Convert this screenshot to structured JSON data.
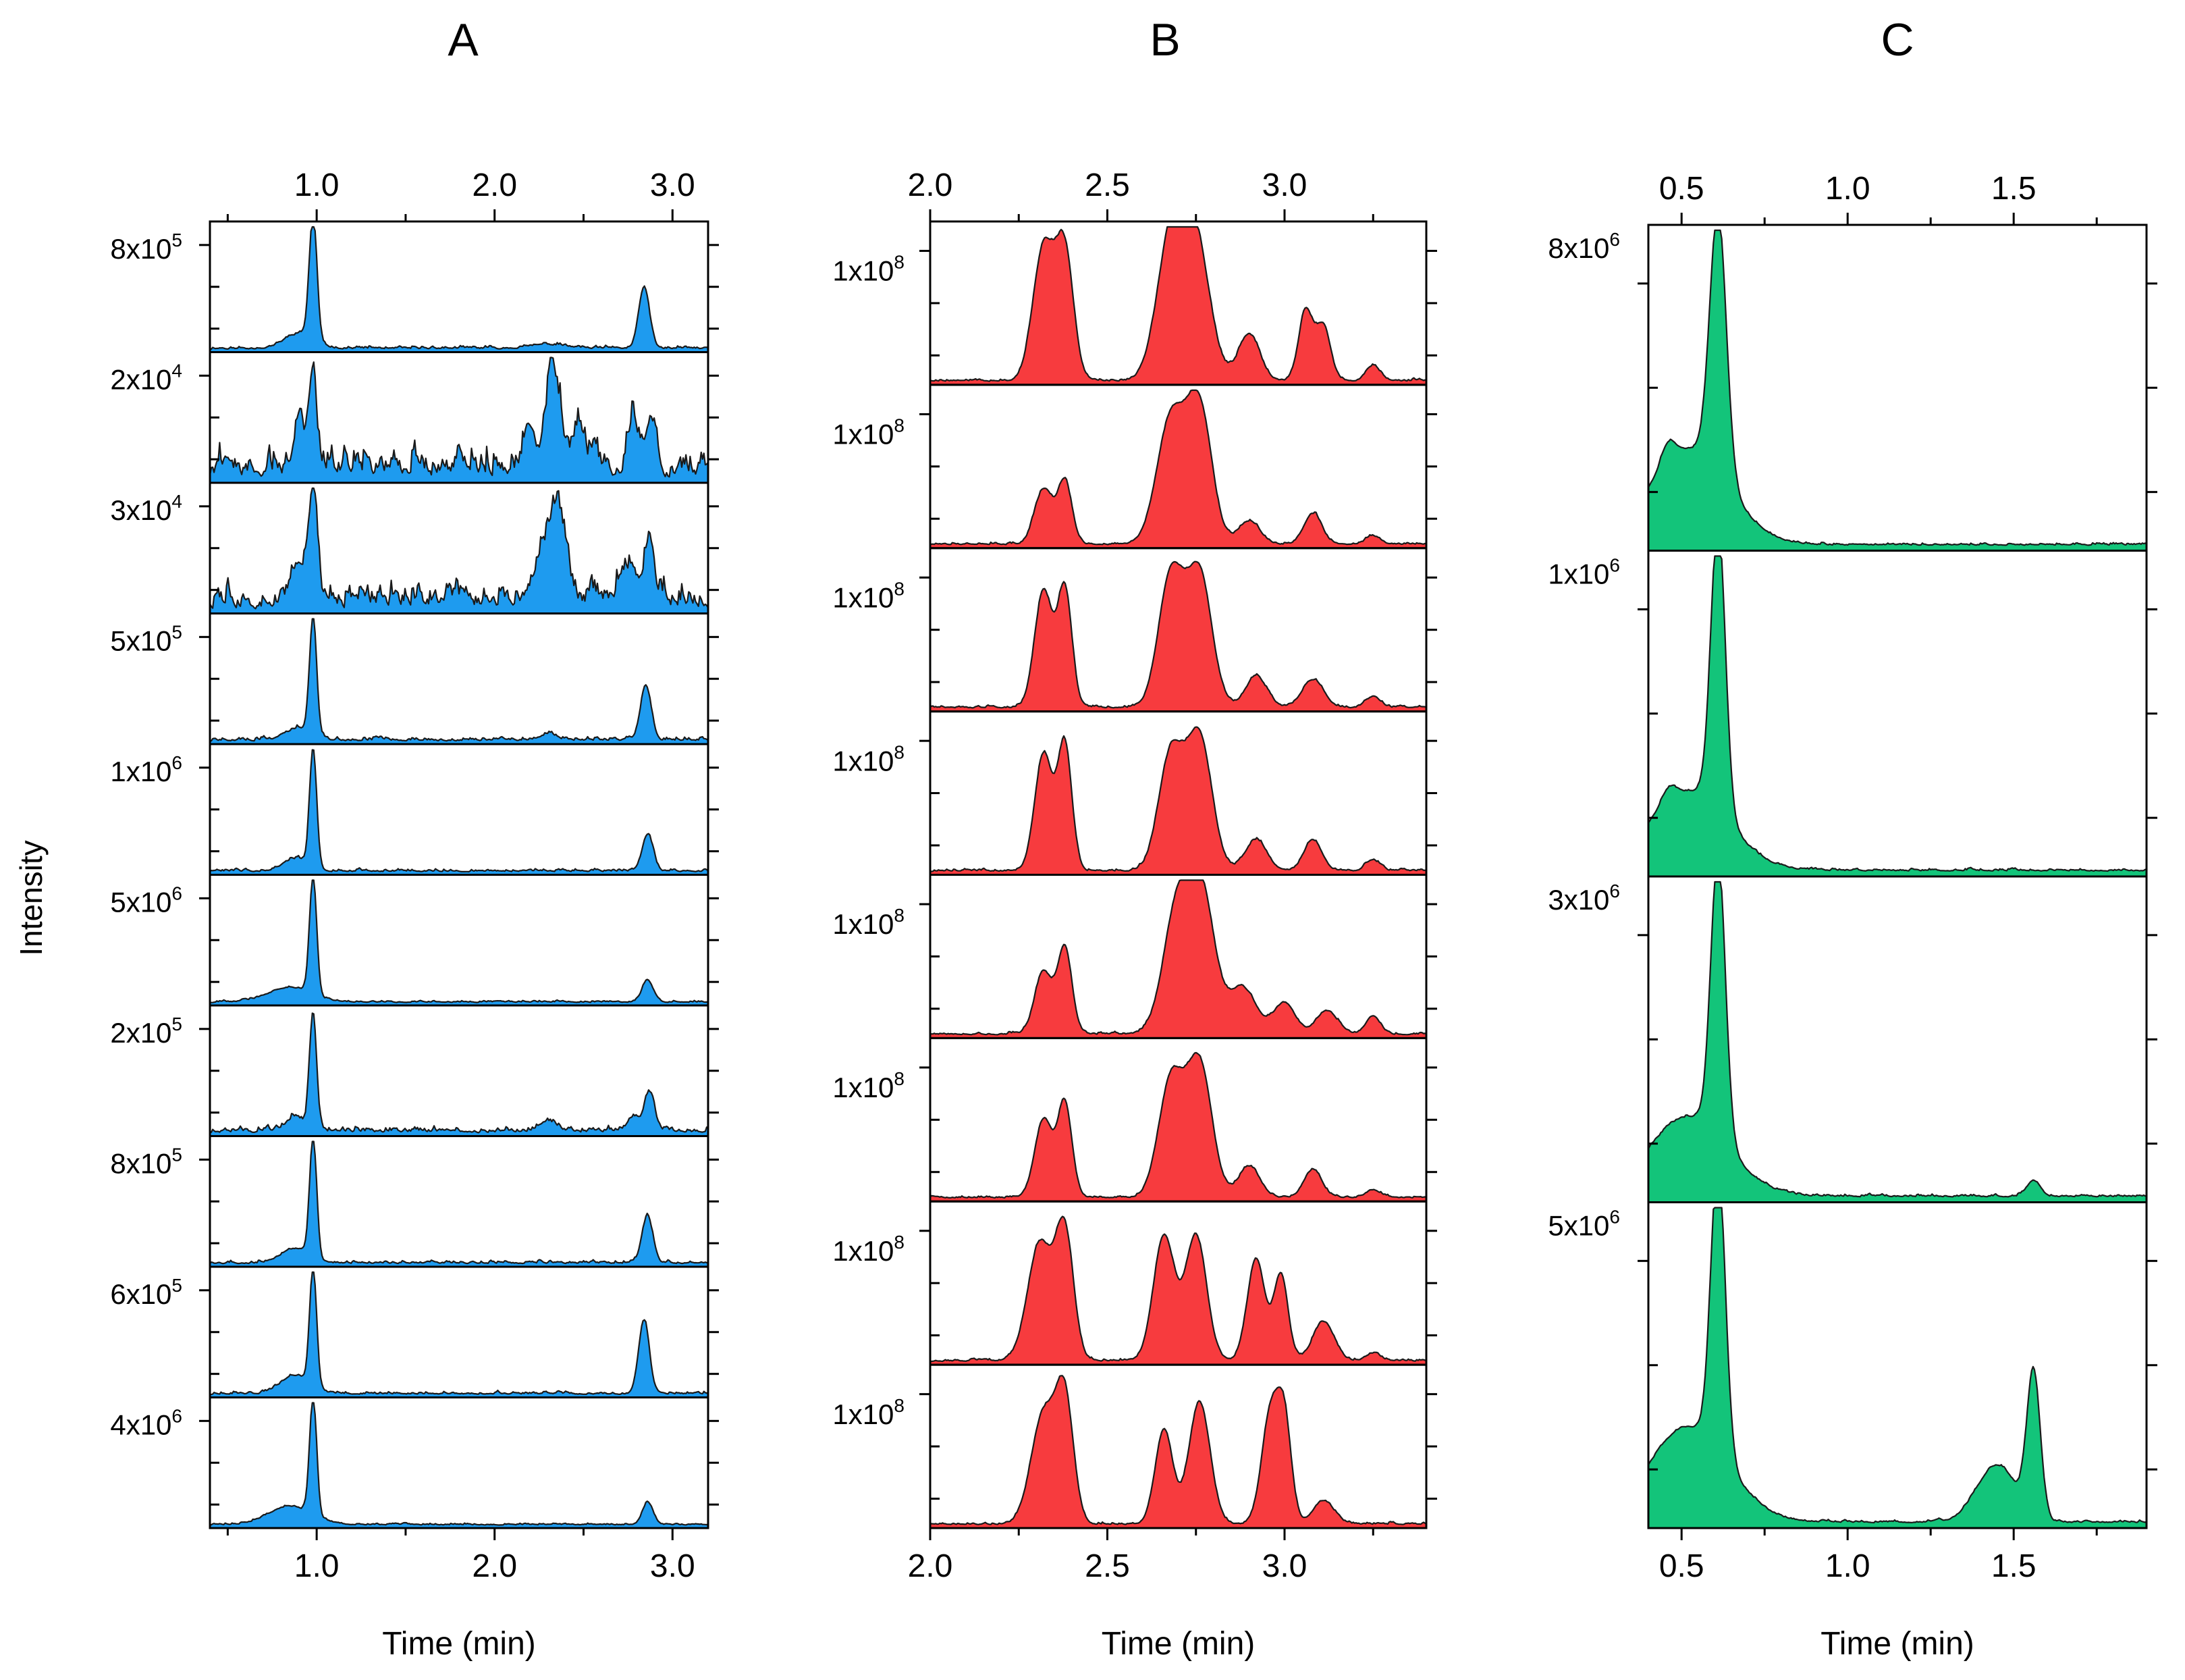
{
  "figure": {
    "y_axis_label": "Intensity",
    "x_axis_label": "Time (min)"
  },
  "chart_data": [
    {
      "type": "area",
      "panel_label": "A",
      "color": "#1E9BEF",
      "xlabel": "Time (min)",
      "ylabel": "Intensity",
      "xlim": [
        0.4,
        3.2
      ],
      "xticks": [
        1.0,
        2.0,
        3.0
      ],
      "xtick_labels": [
        "1.0",
        "2.0",
        "3.0"
      ],
      "traces": [
        {
          "max_label": "8x10^5",
          "base": "8x10",
          "exp": "5",
          "noise": 0.015,
          "peaks": [
            [
              0.98,
              1.0,
              0.022
            ],
            [
              0.9,
              0.12,
              0.08
            ],
            [
              2.84,
              0.5,
              0.03
            ],
            [
              2.3,
              0.03,
              0.1
            ]
          ]
        },
        {
          "max_label": "2x10^4",
          "base": "2x10",
          "exp": "4",
          "noise": 0.16,
          "peaks": [
            [
              0.98,
              0.85,
              0.02
            ],
            [
              0.9,
              0.45,
              0.03
            ],
            [
              2.33,
              0.85,
              0.04
            ],
            [
              2.2,
              0.4,
              0.03
            ],
            [
              2.47,
              0.35,
              0.03
            ],
            [
              2.78,
              0.4,
              0.03
            ],
            [
              2.88,
              0.45,
              0.03
            ]
          ]
        },
        {
          "max_label": "3x10^4",
          "base": "3x10",
          "exp": "4",
          "noise": 0.13,
          "peaks": [
            [
              0.98,
              0.85,
              0.025
            ],
            [
              0.9,
              0.35,
              0.04
            ],
            [
              2.35,
              0.72,
              0.05
            ],
            [
              2.25,
              0.25,
              0.05
            ],
            [
              2.87,
              0.45,
              0.03
            ],
            [
              2.75,
              0.25,
              0.05
            ]
          ]
        },
        {
          "max_label": "5x10^5",
          "base": "5x10",
          "exp": "5",
          "noise": 0.02,
          "peaks": [
            [
              0.98,
              0.95,
              0.02
            ],
            [
              0.9,
              0.1,
              0.07
            ],
            [
              2.85,
              0.45,
              0.03
            ],
            [
              2.3,
              0.05,
              0.05
            ]
          ]
        },
        {
          "max_label": "1x10^6",
          "base": "1x10",
          "exp": "6",
          "noise": 0.015,
          "peaks": [
            [
              0.98,
              0.95,
              0.02
            ],
            [
              0.88,
              0.1,
              0.07
            ],
            [
              2.86,
              0.3,
              0.03
            ]
          ]
        },
        {
          "max_label": "5x10^6",
          "base": "5x10",
          "exp": "6",
          "noise": 0.01,
          "peaks": [
            [
              0.98,
              0.95,
              0.02
            ],
            [
              0.85,
              0.12,
              0.12
            ],
            [
              2.86,
              0.18,
              0.03
            ]
          ]
        },
        {
          "max_label": "2x10^5",
          "base": "2x10",
          "exp": "5",
          "noise": 0.03,
          "peaks": [
            [
              0.98,
              0.92,
              0.02
            ],
            [
              0.88,
              0.12,
              0.05
            ],
            [
              2.87,
              0.32,
              0.03
            ],
            [
              2.3,
              0.08,
              0.05
            ],
            [
              2.78,
              0.12,
              0.03
            ]
          ]
        },
        {
          "max_label": "8x10^5",
          "base": "8x10",
          "exp": "5",
          "noise": 0.015,
          "peaks": [
            [
              0.98,
              0.95,
              0.02
            ],
            [
              0.88,
              0.12,
              0.08
            ],
            [
              2.86,
              0.38,
              0.03
            ]
          ]
        },
        {
          "max_label": "6x10^5",
          "base": "6x10",
          "exp": "5",
          "noise": 0.015,
          "peaks": [
            [
              0.98,
              0.95,
              0.02
            ],
            [
              0.88,
              0.15,
              0.08
            ],
            [
              2.84,
              0.6,
              0.03
            ]
          ]
        },
        {
          "max_label": "4x10^6",
          "base": "4x10",
          "exp": "6",
          "noise": 0.01,
          "peaks": [
            [
              0.98,
              0.95,
              0.02
            ],
            [
              0.85,
              0.15,
              0.12
            ],
            [
              2.86,
              0.18,
              0.03
            ]
          ]
        }
      ]
    },
    {
      "type": "area",
      "panel_label": "B",
      "color": "#F73B3E",
      "xlabel": "Time (min)",
      "ylabel": "Intensity",
      "xlim": [
        2.0,
        3.4
      ],
      "xticks": [
        2.0,
        2.5,
        3.0
      ],
      "xtick_labels": [
        "2.0",
        "2.5",
        "3.0"
      ],
      "traces": [
        {
          "max_label": "1x10^8",
          "base": "1x10",
          "exp": "8",
          "noise": 0.01,
          "peaks": [
            [
              2.32,
              0.85,
              0.03
            ],
            [
              2.38,
              0.8,
              0.025
            ],
            [
              2.68,
              0.9,
              0.04
            ],
            [
              2.75,
              0.85,
              0.04
            ],
            [
              2.9,
              0.3,
              0.03
            ],
            [
              3.06,
              0.45,
              0.02
            ],
            [
              3.11,
              0.35,
              0.02
            ],
            [
              3.25,
              0.1,
              0.02
            ]
          ]
        },
        {
          "max_label": "1x10^8",
          "base": "1x10",
          "exp": "8",
          "noise": 0.01,
          "peaks": [
            [
              2.32,
              0.35,
              0.025
            ],
            [
              2.38,
              0.4,
              0.02
            ],
            [
              2.68,
              0.8,
              0.04
            ],
            [
              2.76,
              0.85,
              0.035
            ],
            [
              2.9,
              0.15,
              0.03
            ],
            [
              3.08,
              0.2,
              0.025
            ],
            [
              3.25,
              0.05,
              0.02
            ]
          ]
        },
        {
          "max_label": "1x10^8",
          "base": "1x10",
          "exp": "8",
          "noise": 0.01,
          "peaks": [
            [
              2.32,
              0.75,
              0.025
            ],
            [
              2.38,
              0.75,
              0.02
            ],
            [
              2.68,
              0.85,
              0.035
            ],
            [
              2.76,
              0.85,
              0.035
            ],
            [
              2.92,
              0.2,
              0.03
            ],
            [
              3.08,
              0.18,
              0.03
            ],
            [
              3.25,
              0.07,
              0.02
            ]
          ]
        },
        {
          "max_label": "1x10^8",
          "base": "1x10",
          "exp": "8",
          "noise": 0.01,
          "peaks": [
            [
              2.32,
              0.75,
              0.025
            ],
            [
              2.38,
              0.8,
              0.02
            ],
            [
              2.68,
              0.75,
              0.035
            ],
            [
              2.76,
              0.85,
              0.035
            ],
            [
              2.92,
              0.2,
              0.03
            ],
            [
              3.08,
              0.2,
              0.025
            ],
            [
              3.25,
              0.07,
              0.02
            ]
          ]
        },
        {
          "max_label": "1x10^8",
          "base": "1x10",
          "exp": "8",
          "noise": 0.01,
          "peaks": [
            [
              2.32,
              0.4,
              0.025
            ],
            [
              2.38,
              0.55,
              0.02
            ],
            [
              2.7,
              0.85,
              0.04
            ],
            [
              2.77,
              0.8,
              0.035
            ],
            [
              2.88,
              0.3,
              0.04
            ],
            [
              3.0,
              0.2,
              0.03
            ],
            [
              3.12,
              0.15,
              0.03
            ],
            [
              3.25,
              0.12,
              0.02
            ]
          ]
        },
        {
          "max_label": "1x10^8",
          "base": "1x10",
          "exp": "8",
          "noise": 0.01,
          "peaks": [
            [
              2.32,
              0.5,
              0.025
            ],
            [
              2.38,
              0.6,
              0.02
            ],
            [
              2.68,
              0.75,
              0.035
            ],
            [
              2.76,
              0.85,
              0.035
            ],
            [
              2.9,
              0.2,
              0.03
            ],
            [
              3.08,
              0.18,
              0.025
            ],
            [
              3.25,
              0.05,
              0.02
            ]
          ]
        },
        {
          "max_label": "1x10^8",
          "base": "1x10",
          "exp": "8",
          "noise": 0.01,
          "peaks": [
            [
              2.31,
              0.75,
              0.035
            ],
            [
              2.38,
              0.8,
              0.025
            ],
            [
              2.66,
              0.8,
              0.03
            ],
            [
              2.75,
              0.8,
              0.03
            ],
            [
              2.92,
              0.65,
              0.025
            ],
            [
              2.99,
              0.55,
              0.02
            ],
            [
              3.11,
              0.25,
              0.03
            ],
            [
              3.25,
              0.05,
              0.02
            ]
          ]
        },
        {
          "max_label": "1x10^8",
          "base": "1x10",
          "exp": "8",
          "noise": 0.01,
          "peaks": [
            [
              2.32,
              0.7,
              0.035
            ],
            [
              2.38,
              0.75,
              0.025
            ],
            [
              2.66,
              0.6,
              0.025
            ],
            [
              2.76,
              0.78,
              0.03
            ],
            [
              2.96,
              0.7,
              0.025
            ],
            [
              3.0,
              0.6,
              0.02
            ],
            [
              3.11,
              0.15,
              0.03
            ]
          ]
        }
      ]
    },
    {
      "type": "area",
      "panel_label": "C",
      "color": "#13C47A",
      "xlabel": "Time (min)",
      "ylabel": "Intensity",
      "xlim": [
        0.4,
        1.9
      ],
      "xticks": [
        0.5,
        1.0,
        1.5
      ],
      "xtick_labels": [
        "0.5",
        "1.0",
        "1.5"
      ],
      "traces": [
        {
          "max_label": "8x10^6",
          "base": "8x10",
          "exp": "6",
          "noise": 0.005,
          "peaks": [
            [
              0.61,
              0.82,
              0.025
            ],
            [
              0.52,
              0.3,
              0.12
            ],
            [
              0.46,
              0.06,
              0.02
            ]
          ]
        },
        {
          "max_label": "1x10^6",
          "base": "1x10",
          "exp": "6",
          "noise": 0.005,
          "peaks": [
            [
              0.61,
              0.9,
              0.022
            ],
            [
              0.52,
              0.25,
              0.12
            ],
            [
              0.46,
              0.04,
              0.02
            ]
          ]
        },
        {
          "max_label": "3x10^6",
          "base": "3x10",
          "exp": "6",
          "noise": 0.005,
          "peaks": [
            [
              0.61,
              0.88,
              0.022
            ],
            [
              0.52,
              0.25,
              0.12
            ],
            [
              1.56,
              0.05,
              0.02
            ]
          ]
        },
        {
          "max_label": "5x10^6",
          "base": "5x10",
          "exp": "6",
          "noise": 0.005,
          "peaks": [
            [
              0.61,
              0.9,
              0.022
            ],
            [
              0.52,
              0.3,
              0.12
            ],
            [
              1.45,
              0.18,
              0.06
            ],
            [
              1.56,
              0.45,
              0.02
            ]
          ]
        }
      ]
    }
  ]
}
